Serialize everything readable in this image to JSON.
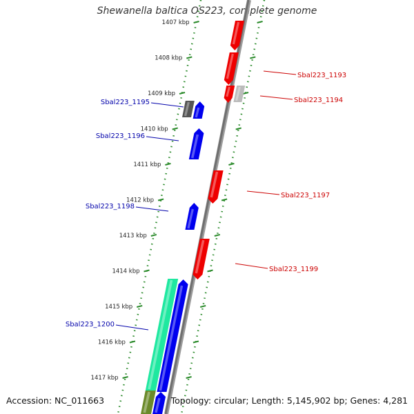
{
  "title": "Shewanella baltica OS223, complete genome",
  "footer": {
    "accession": "Accession: NC_011663",
    "summary": "Topology: circular; Length: 5,145,902 bp; Genes: 4,281"
  },
  "colors": {
    "forward": "#0000ee",
    "reverse": "#ee0000",
    "grey": "#555555",
    "lightgrey": "#bbbbbb",
    "mint": "#1fe8a0",
    "olive": "#6b8a2a",
    "tick": "#2a8a2a",
    "label_blue": "#0000aa",
    "label_red": "#cc0000"
  },
  "ticks": [
    "1407 kbp",
    "1408 kbp",
    "1409 kbp",
    "1410 kbp",
    "1411 kbp",
    "1412 kbp",
    "1413 kbp",
    "1414 kbp",
    "1415 kbp",
    "1416 kbp",
    "1417 kbp"
  ],
  "genes": [
    {
      "name": "Sbal223_1193",
      "strand": "reverse",
      "color": "reverse"
    },
    {
      "name": "Sbal223_1194",
      "strand": "reverse",
      "color": "lightgrey"
    },
    {
      "name": "Sbal223_1195",
      "strand": "forward",
      "color": "forward"
    },
    {
      "name": "Sbal223_1196",
      "strand": "forward",
      "color": "forward"
    },
    {
      "name": "Sbal223_1197",
      "strand": "reverse",
      "color": "reverse"
    },
    {
      "name": "Sbal223_1198",
      "strand": "forward",
      "color": "forward"
    },
    {
      "name": "Sbal223_1199",
      "strand": "reverse",
      "color": "reverse"
    },
    {
      "name": "Sbal223_1200",
      "strand": "forward",
      "color": "forward"
    }
  ]
}
